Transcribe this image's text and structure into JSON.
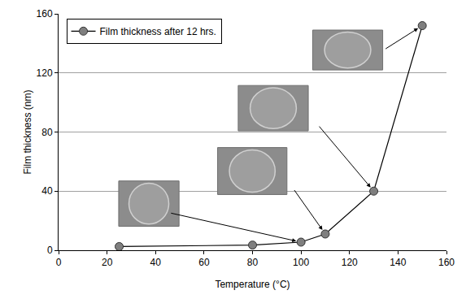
{
  "chart_data": {
    "type": "line",
    "x_label": "Temperature (°C)",
    "y_label": "Film thickness (nm)",
    "x": [
      25,
      80,
      100,
      110,
      130,
      150
    ],
    "series": [
      {
        "name": "Film thickness after 12 hrs.",
        "color": "#7f7f7f",
        "marker": "circle",
        "line_style": "solid",
        "values": [
          2.5,
          3.5,
          5.5,
          11,
          40,
          152
        ]
      }
    ],
    "xlim": [
      0,
      160
    ],
    "xticks": [
      0,
      20,
      40,
      60,
      80,
      100,
      120,
      140,
      160
    ],
    "ylim": [
      0,
      160
    ],
    "yticks": [
      0,
      40,
      80,
      120,
      160
    ],
    "grid": true,
    "legend": "upper left"
  }
}
